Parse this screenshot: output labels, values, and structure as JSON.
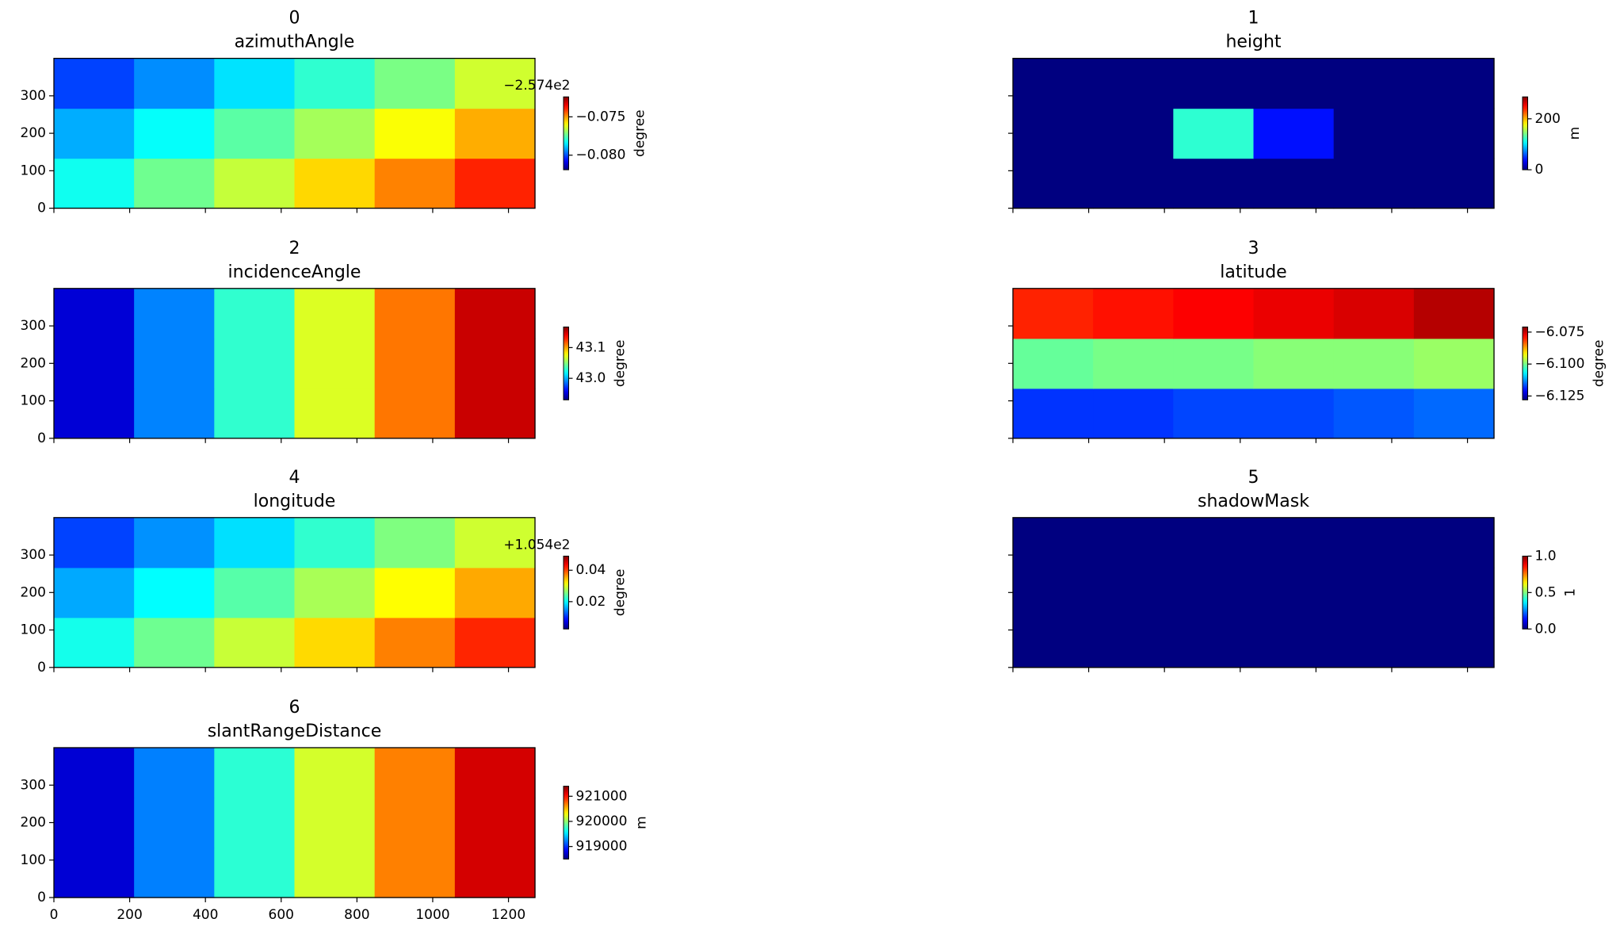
{
  "chart_data": [
    {
      "type": "heatmap",
      "title": "0",
      "subtitle": "azimuthAngle",
      "colormap": "jet",
      "xlim": [
        0,
        1270
      ],
      "ylim": [
        0,
        400
      ],
      "xticks": [
        0,
        200,
        400,
        600,
        800,
        1000,
        1200
      ],
      "yticks": [
        0,
        100,
        200,
        300
      ],
      "show_xtick_labels": false,
      "show_ytick_labels": true,
      "z": [
        [
          -0.0782,
          -0.0773,
          -0.0765,
          -0.0756,
          -0.0748,
          -0.0739
        ],
        [
          -0.0791,
          -0.0783,
          -0.0775,
          -0.0768,
          -0.076,
          -0.0752
        ],
        [
          -0.0801,
          -0.0794,
          -0.0786,
          -0.0779,
          -0.0772,
          -0.0764
        ]
      ],
      "colorbar": {
        "label": "degree",
        "lim": [
          -0.0819,
          -0.0724
        ],
        "offset_text": "−2.574e2",
        "ticks": [
          {
            "value": -0.075,
            "label": "−0.075"
          },
          {
            "value": -0.08,
            "label": "−0.080"
          }
        ]
      }
    },
    {
      "type": "heatmap",
      "title": "1",
      "subtitle": "height",
      "colormap": "jet",
      "xlim": [
        0,
        1270
      ],
      "ylim": [
        0,
        400
      ],
      "xticks": [
        0,
        200,
        400,
        600,
        800,
        1000,
        1200
      ],
      "yticks": [
        0,
        100,
        200,
        300
      ],
      "show_xtick_labels": false,
      "show_ytick_labels": false,
      "z": [
        [
          0,
          0,
          0,
          0,
          0,
          0
        ],
        [
          0,
          0,
          120,
          40,
          0,
          0
        ],
        [
          0,
          0,
          0,
          0,
          0,
          0
        ]
      ],
      "colorbar": {
        "label": "m",
        "lim": [
          0,
          286
        ],
        "ticks": [
          0,
          200
        ]
      }
    },
    {
      "type": "heatmap",
      "title": "2",
      "subtitle": "incidenceAngle",
      "colormap": "jet",
      "xlim": [
        0,
        1270
      ],
      "ylim": [
        0,
        400
      ],
      "xticks": [
        0,
        200,
        400,
        600,
        800,
        1000,
        1200
      ],
      "yticks": [
        0,
        100,
        200,
        300
      ],
      "show_xtick_labels": false,
      "show_ytick_labels": true,
      "z": [
        [
          42.95,
          42.99,
          43.03,
          43.07,
          43.11,
          43.15
        ],
        [
          42.95,
          42.99,
          43.03,
          43.07,
          43.11,
          43.15
        ],
        [
          42.95,
          42.99,
          43.03,
          43.07,
          43.11,
          43.15
        ]
      ],
      "colorbar": {
        "label": "degree",
        "lim": [
          42.93,
          43.167
        ],
        "ticks": [
          43.1,
          {
            "value": 43,
            "label": "43.0"
          }
        ]
      }
    },
    {
      "type": "heatmap",
      "title": "3",
      "subtitle": "latitude",
      "colormap": "jet",
      "xlim": [
        0,
        1270
      ],
      "ylim": [
        0,
        400
      ],
      "xticks": [
        0,
        200,
        400,
        600,
        800,
        1000,
        1200
      ],
      "yticks": [
        0,
        100,
        200,
        300
      ],
      "show_xtick_labels": false,
      "show_ytick_labels": false,
      "z": [
        [
          -6.118,
          -6.118,
          -6.117,
          -6.117,
          -6.116,
          -6.115
        ],
        [
          -6.101,
          -6.1,
          -6.1,
          -6.099,
          -6.099,
          -6.098
        ],
        [
          -6.08,
          -6.079,
          -6.078,
          -6.077,
          -6.076,
          -6.074
        ]
      ],
      "colorbar": {
        "label": "degree",
        "lim": [
          -6.128,
          -6.071
        ],
        "ticks": [
          {
            "value": -6.075,
            "label": "−6.075"
          },
          {
            "value": -6.1,
            "label": "−6.100"
          },
          {
            "value": -6.125,
            "label": "−6.125"
          }
        ]
      }
    },
    {
      "type": "heatmap",
      "title": "4",
      "subtitle": "longitude",
      "colormap": "jet",
      "xlim": [
        0,
        1270
      ],
      "ylim": [
        0,
        400
      ],
      "xticks": [
        0,
        200,
        400,
        600,
        800,
        1000,
        1200
      ],
      "yticks": [
        0,
        100,
        200,
        300
      ],
      "show_xtick_labels": false,
      "show_ytick_labels": true,
      "z": [
        [
          0.0209,
          0.025,
          0.0291,
          0.0333,
          0.0374,
          0.0415
        ],
        [
          0.0161,
          0.02,
          0.0239,
          0.0277,
          0.0316,
          0.0355
        ],
        [
          0.0114,
          0.015,
          0.0186,
          0.0222,
          0.0258,
          0.0294
        ]
      ],
      "colorbar": {
        "label": "degree",
        "lim": [
          0.0026,
          0.049
        ],
        "offset_text": "+1.054e2",
        "ticks": [
          0.04,
          0.02
        ]
      }
    },
    {
      "type": "heatmap",
      "title": "5",
      "subtitle": "shadowMask",
      "colormap": "jet",
      "xlim": [
        0,
        1270
      ],
      "ylim": [
        0,
        400
      ],
      "xticks": [
        0,
        200,
        400,
        600,
        800,
        1000,
        1200
      ],
      "yticks": [
        0,
        100,
        200,
        300
      ],
      "show_xtick_labels": false,
      "show_ytick_labels": false,
      "z": [
        [
          0,
          0,
          0,
          0,
          0,
          0
        ],
        [
          0,
          0,
          0,
          0,
          0,
          0
        ],
        [
          0,
          0,
          0,
          0,
          0,
          0
        ]
      ],
      "colorbar": {
        "label": "1",
        "lim": [
          0,
          1
        ],
        "ticks": [
          {
            "value": 1,
            "label": "1.0"
          },
          0.5,
          {
            "value": 0,
            "label": "0.0"
          }
        ]
      }
    },
    {
      "type": "heatmap",
      "title": "6",
      "subtitle": "slantRangeDistance",
      "colormap": "jet",
      "xlim": [
        0,
        1270
      ],
      "ylim": [
        0,
        400
      ],
      "xticks": [
        0,
        200,
        400,
        600,
        800,
        1000,
        1200
      ],
      "yticks": [
        0,
        100,
        200,
        300
      ],
      "show_xtick_labels": true,
      "show_ytick_labels": true,
      "z": [
        [
          918740,
          919225,
          919710,
          920190,
          920675,
          921160
        ],
        [
          918740,
          919225,
          919710,
          920190,
          920675,
          921160
        ],
        [
          918740,
          919225,
          919710,
          920190,
          920675,
          921160
        ]
      ],
      "colorbar": {
        "label": "m",
        "lim": [
          918500,
          921400
        ],
        "ticks": [
          921000,
          920000,
          919000
        ]
      }
    }
  ]
}
